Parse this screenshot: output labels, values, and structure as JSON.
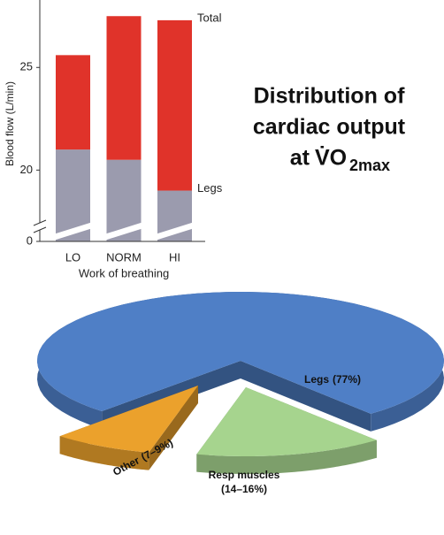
{
  "chart_data": [
    {
      "type": "bar",
      "stacked": true,
      "axis_break": true,
      "xlabel": "Work of breathing",
      "ylabel": "Blood flow (L/min)",
      "categories": [
        "LO",
        "NORM",
        "HI"
      ],
      "series": [
        {
          "name": "Legs",
          "color": "#9b9bae",
          "values": [
            21.0,
            20.5,
            19.0
          ]
        },
        {
          "name": "Total",
          "color": "#e0332a",
          "values": [
            4.6,
            7.0,
            8.3
          ]
        }
      ],
      "ylim": [
        17.3,
        28.2
      ],
      "yticks": [
        0,
        20,
        25
      ]
    },
    {
      "type": "pie",
      "three_d": true,
      "title": {
        "lines": [
          "Distribution of",
          "cardiac output",
          "at"
        ],
        "symbol": "V̇O",
        "subscript": "2max"
      },
      "categories": [
        "Legs",
        "Resp muscles",
        "Other"
      ],
      "values": [
        77,
        15,
        8
      ],
      "value_labels": [
        "(77%)",
        "(14–16%)",
        "(7–9%)"
      ],
      "colors": [
        "#4f7fc6",
        "#a6d48e",
        "#eba12c"
      ]
    }
  ]
}
